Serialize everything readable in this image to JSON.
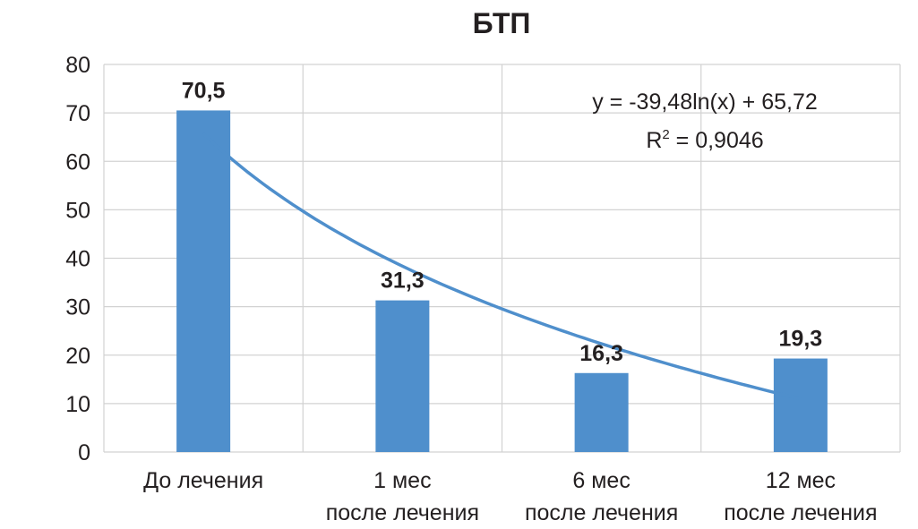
{
  "chart_data": {
    "type": "bar",
    "title": "БТП",
    "categories": [
      [
        "До лечения"
      ],
      [
        "1 мес",
        "после лечения"
      ],
      [
        "6 мес",
        "после лечения"
      ],
      [
        "12 мес",
        "после лечения"
      ]
    ],
    "values": [
      70.5,
      31.3,
      16.3,
      19.3
    ],
    "data_labels": [
      "70,5",
      "31,3",
      "16,3",
      "19,3"
    ],
    "ylim": [
      0,
      80
    ],
    "yticks": [
      0,
      10,
      20,
      30,
      40,
      50,
      60,
      70,
      80
    ],
    "grid": true,
    "bar_color": "#4f8fcc",
    "trendline": {
      "type": "logarithmic",
      "a": -39.48,
      "b": 65.72,
      "color": "#4f8fcc",
      "equation": "y = -39,48ln(x) + 65,72",
      "r2_label": "R",
      "r2_sup": "2",
      "r2_value": " = 0,9046"
    }
  }
}
